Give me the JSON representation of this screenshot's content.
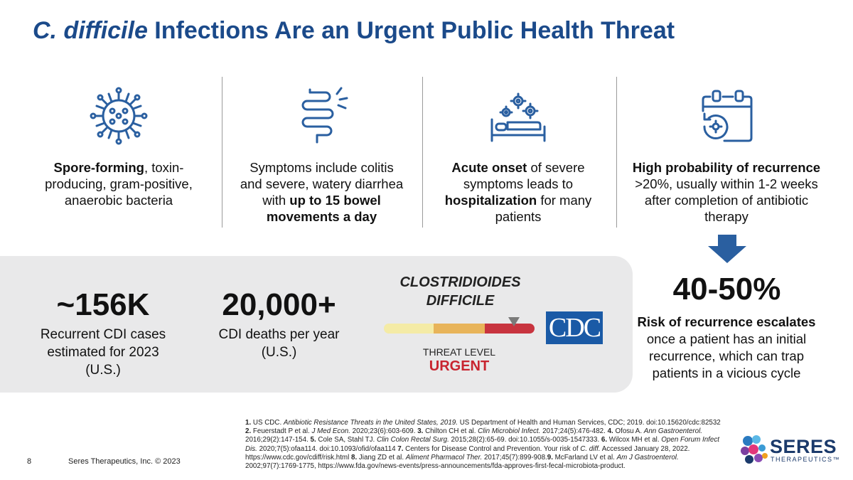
{
  "title": {
    "italic": "C. difficile",
    "rest": " Infections Are an Urgent Public Health Threat"
  },
  "columns": [
    {
      "icon": "bacteria-icon",
      "parts": [
        {
          "b": true,
          "t": "Spore-forming"
        },
        {
          "b": false,
          "t": ", toxin-producing, gram-positive, anaerobic bacteria"
        }
      ]
    },
    {
      "icon": "intestine-icon",
      "parts": [
        {
          "b": false,
          "t": "Symptoms include colitis and severe, watery diarrhea with "
        },
        {
          "b": true,
          "t": "up to 15 bowel movements a day"
        }
      ]
    },
    {
      "icon": "hospital-bed-icon",
      "parts": [
        {
          "b": true,
          "t": "Acute onset"
        },
        {
          "b": false,
          "t": " of severe symptoms leads to "
        },
        {
          "b": true,
          "t": "hospitalization"
        },
        {
          "b": false,
          "t": " for many patients"
        }
      ]
    },
    {
      "icon": "calendar-recurrence-icon",
      "parts": [
        {
          "b": true,
          "t": "High probability of recurrence"
        },
        {
          "b": false,
          "t": " >20%, usually within 1-2 weeks after completion of antibiotic therapy"
        }
      ]
    }
  ],
  "stats": {
    "cases_value": "~156K",
    "cases_label": "Recurrent CDI cases estimated for 2023 (U.S.)",
    "deaths_value": "20,000+",
    "deaths_label": "CDI deaths per year (U.S.)"
  },
  "threat": {
    "name_line1": "CLOSTRIDIOIDES",
    "name_line2": "DIFFICILE",
    "label": "THREAT LEVEL",
    "level": "URGENT",
    "colors": [
      "#f4eba6",
      "#e8b45a",
      "#c8343f"
    ]
  },
  "cdc_logo": "CDC",
  "recurrence": {
    "value": "40-50%",
    "bold": "Risk of recurrence escalates",
    "rest": " once a patient has an initial recurrence, which can trap patients in a vicious cycle"
  },
  "references": [
    {
      "b": true,
      "t": "1."
    },
    {
      "b": false,
      "t": " US CDC. "
    },
    {
      "i": true,
      "t": "Antibiotic Resistance Threats in the United States, 2019."
    },
    {
      "b": false,
      "t": " US Department of Health and Human Services, CDC; 2019. doi:10.15620/cdc:82532 "
    },
    {
      "br": true
    },
    {
      "b": true,
      "t": "2."
    },
    {
      "b": false,
      "t": " Feuerstadt P et al. "
    },
    {
      "i": true,
      "t": "J Med Econ."
    },
    {
      "b": false,
      "t": " 2020;23(6):603-609. "
    },
    {
      "b": true,
      "t": "3."
    },
    {
      "b": false,
      "t": " Chilton CH et al. "
    },
    {
      "i": true,
      "t": "Clin Microbiol Infect."
    },
    {
      "b": false,
      "t": " 2017;24(5):476-482. "
    },
    {
      "b": true,
      "t": "4."
    },
    {
      "b": false,
      "t": " Ofosu A. "
    },
    {
      "i": true,
      "t": "Ann Gastroenterol."
    },
    {
      "b": false,
      "t": " 2016;29(2):147-154. "
    },
    {
      "b": true,
      "t": "5."
    },
    {
      "b": false,
      "t": " Cole SA, Stahl TJ. "
    },
    {
      "i": true,
      "t": "Clin Colon Rectal Surg."
    },
    {
      "b": false,
      "t": " 2015;28(2):65-69. doi:10.1055/s-0035-1547333. "
    },
    {
      "b": true,
      "t": "6."
    },
    {
      "b": false,
      "t": " Wilcox MH et al. "
    },
    {
      "i": true,
      "t": "Open Forum Infect Dis."
    },
    {
      "b": false,
      "t": " 2020;7(5):ofaa114. doi:10.1093/ofid/ofaa114 "
    },
    {
      "b": true,
      "t": "7."
    },
    {
      "b": false,
      "t": " Centers for Disease Control and Prevention. Your risk of "
    },
    {
      "i": true,
      "t": "C. diff."
    },
    {
      "b": false,
      "t": " Accessed January 28, 2022. https://www.cdc.gov/cdiff/risk.html "
    },
    {
      "b": true,
      "t": "8."
    },
    {
      "b": false,
      "t": " Jiang ZD et al. "
    },
    {
      "i": true,
      "t": "Aliment Pharmacol Ther."
    },
    {
      "b": false,
      "t": " 2017;45(7):899-908."
    },
    {
      "b": true,
      "t": "9."
    },
    {
      "b": false,
      "t": " McFarland LV et al. "
    },
    {
      "i": true,
      "t": "Am J Gastroenterol."
    },
    {
      "b": false,
      "t": " 2002;97(7):1769-1775, https://www.fda.gov/news-events/press-announcements/fda-approves-first-fecal-microbiota-product."
    }
  ],
  "footer": {
    "page": "8",
    "company": "Seres Therapeutics, Inc. © 2023"
  },
  "logo": {
    "word": "SERES",
    "sub": "THERAPEUTICS™"
  },
  "accent": "#1b4a8a",
  "icon_color": "#2a5fa0"
}
